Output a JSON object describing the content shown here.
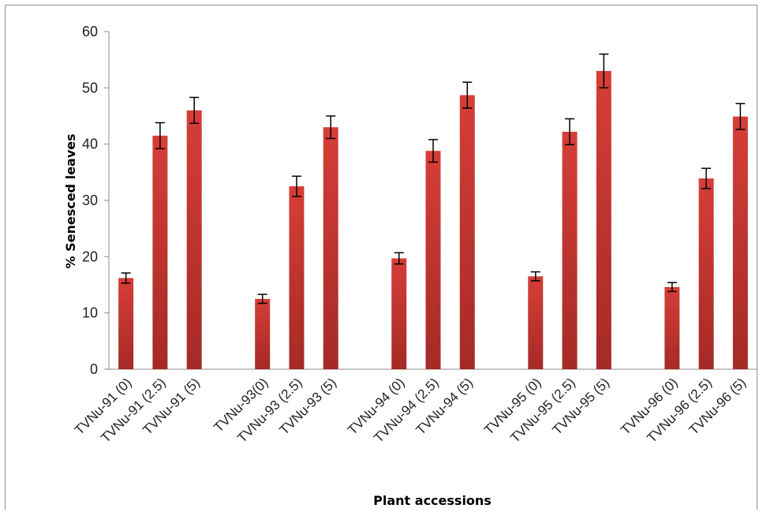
{
  "chart_data": {
    "type": "bar",
    "title": "",
    "xlabel": "Plant accessions",
    "ylabel": "% Senesced leaves",
    "ylim": [
      0,
      60
    ],
    "yticks": [
      0,
      10,
      20,
      30,
      40,
      50,
      60
    ],
    "grid": false,
    "legend": "none",
    "bar_color": "#c0332f",
    "groups": [
      {
        "bars": [
          {
            "label": "TVNu-91 (0)",
            "value": 16.2,
            "error": 0.9
          },
          {
            "label": "TVNu-91 (2.5)",
            "value": 41.5,
            "error": 2.3
          },
          {
            "label": "TVNu-91 (5)",
            "value": 46.0,
            "error": 2.3
          }
        ]
      },
      {
        "bars": [
          {
            "label": "TVNu-93(0)",
            "value": 12.5,
            "error": 0.8
          },
          {
            "label": "TVNu-93 (2.5)",
            "value": 32.5,
            "error": 1.8
          },
          {
            "label": "TVNu-93 (5)",
            "value": 43.0,
            "error": 2.0
          }
        ]
      },
      {
        "bars": [
          {
            "label": "TVNu-94 (0)",
            "value": 19.7,
            "error": 1.0
          },
          {
            "label": "TVNu-94 (2.5)",
            "value": 38.8,
            "error": 2.0
          },
          {
            "label": "TVNu-94 (5)",
            "value": 48.7,
            "error": 2.3
          }
        ]
      },
      {
        "bars": [
          {
            "label": "TVNu-95 (0)",
            "value": 16.5,
            "error": 0.8
          },
          {
            "label": "TVNu-95 (2.5)",
            "value": 42.2,
            "error": 2.3
          },
          {
            "label": "TVNu-95 (5)",
            "value": 53.0,
            "error": 3.0
          }
        ]
      },
      {
        "bars": [
          {
            "label": "TVNu-96 (0)",
            "value": 14.6,
            "error": 0.8
          },
          {
            "label": "TVNu-96 (2.5)",
            "value": 33.9,
            "error": 1.8
          },
          {
            "label": "TVNu-96 (5)",
            "value": 44.9,
            "error": 2.3
          }
        ]
      }
    ]
  }
}
